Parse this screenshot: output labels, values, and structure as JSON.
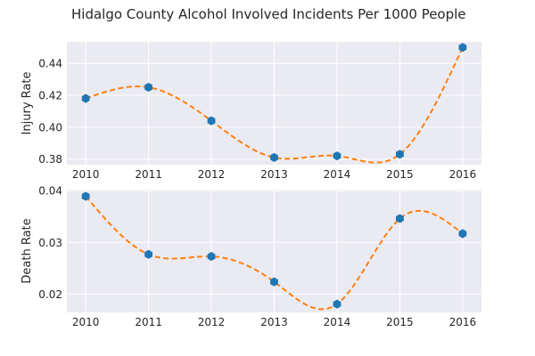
{
  "chart_data": {
    "title": "Hidalgo County Alcohol Involved Incidents Per 1000 People",
    "panels": [
      {
        "type": "scatter",
        "ylabel": "Injury Rate",
        "x": [
          2010,
          2011,
          2012,
          2013,
          2014,
          2015,
          2016
        ],
        "y": [
          0.418,
          0.425,
          0.404,
          0.381,
          0.382,
          0.383,
          0.45
        ],
        "x_ticks": [
          "2010",
          "2011",
          "2012",
          "2013",
          "2014",
          "2015",
          "2016"
        ],
        "y_ticks": [
          "0.38",
          "0.40",
          "0.42",
          "0.44"
        ],
        "y_tick_values": [
          0.38,
          0.4,
          0.42,
          0.44
        ],
        "xlim": [
          2009.7,
          2016.3
        ],
        "ylim": [
          0.3765,
          0.4535
        ],
        "fit": "dashed smooth curve",
        "fit_color": "#ff7f0e",
        "marker_color": "#1f77b4",
        "grid": true
      },
      {
        "type": "scatter",
        "ylabel": "Death Rate",
        "x": [
          2010,
          2011,
          2012,
          2013,
          2014,
          2015,
          2016
        ],
        "y": [
          0.0389,
          0.0277,
          0.0273,
          0.0224,
          0.0181,
          0.0346,
          0.0317
        ],
        "x_ticks": [
          "2010",
          "2011",
          "2012",
          "2013",
          "2014",
          "2015",
          "2016"
        ],
        "y_ticks": [
          "0.02",
          "0.03",
          "0.04"
        ],
        "y_tick_values": [
          0.02,
          0.03,
          0.04
        ],
        "xlim": [
          2009.7,
          2016.3
        ],
        "ylim": [
          0.0165,
          0.0402
        ],
        "fit": "dashed smooth curve",
        "fit_color": "#ff7f0e",
        "marker_color": "#1f77b4",
        "grid": true
      }
    ]
  }
}
